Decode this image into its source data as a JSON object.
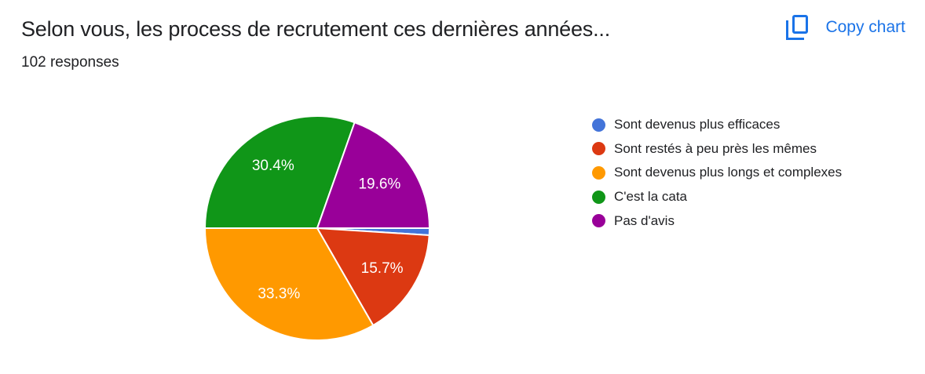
{
  "header": {
    "title": "Selon vous, les process de recrutement ces dernières années...",
    "responses_count": "102 responses",
    "copy_button": {
      "label": "Copy chart",
      "color": "#1a73e8",
      "icon": "copy-icon"
    }
  },
  "chart_data": {
    "type": "pie",
    "title": "Selon vous, les process de recrutement ces dernières années...",
    "subtitle": "102 responses",
    "legend_position": "right",
    "start_angle_deg": 90,
    "direction": "clockwise",
    "label_radius_ratio": 0.68,
    "min_pct_for_label": 3,
    "label_color": "#ffffff",
    "slice_border_color": "#ffffff",
    "slices": [
      {
        "label": "Sont devenus plus efficaces",
        "pct": 1.0,
        "color": "#4374d9"
      },
      {
        "label": "Sont restés à peu près les mêmes",
        "pct": 15.7,
        "color": "#dc3912"
      },
      {
        "label": "Sont devenus plus longs et complexes",
        "pct": 33.3,
        "color": "#ff9900"
      },
      {
        "label": "C'est la cata",
        "pct": 30.4,
        "color": "#109618"
      },
      {
        "label": "Pas d'avis",
        "pct": 19.6,
        "color": "#990099"
      }
    ]
  }
}
